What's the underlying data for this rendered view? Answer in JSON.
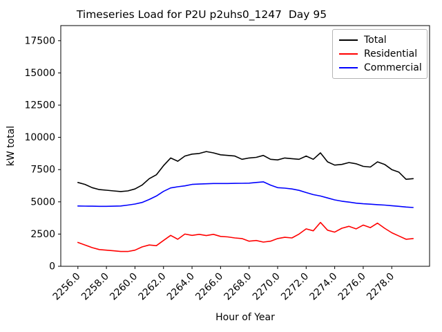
{
  "chart_data": {
    "type": "line",
    "title": "Timeseries Load for P2U p2uhs0_1247  Day 95",
    "xlabel": "Hour of Year",
    "ylabel": "kW total",
    "grid": false,
    "legend_position": "upper right",
    "axes": {
      "xlim": [
        2254.8,
        2280.65
      ],
      "ylim": [
        0,
        18670
      ],
      "xtick_values": [
        2256,
        2258,
        2260,
        2262,
        2264,
        2266,
        2268,
        2270,
        2272,
        2274,
        2276,
        2278
      ],
      "xtick_labels": [
        "2256.0",
        "2258.0",
        "2260.0",
        "2262.0",
        "2264.0",
        "2266.0",
        "2268.0",
        "2270.0",
        "2272.0",
        "2274.0",
        "2276.0",
        "2278.0"
      ],
      "ytick_values": [
        0,
        2500,
        5000,
        7500,
        10000,
        12500,
        15000,
        17500
      ],
      "ytick_labels": [
        "0",
        "2500",
        "5000",
        "7500",
        "10000",
        "12500",
        "15000",
        "17500"
      ]
    },
    "x": [
      2256.0,
      2256.5,
      2257.0,
      2257.5,
      2258.0,
      2258.5,
      2259.0,
      2259.5,
      2260.0,
      2260.5,
      2261.0,
      2261.5,
      2262.0,
      2262.5,
      2263.0,
      2263.5,
      2264.0,
      2264.5,
      2265.0,
      2265.5,
      2266.0,
      2266.5,
      2267.0,
      2267.5,
      2268.0,
      2268.5,
      2269.0,
      2269.5,
      2270.0,
      2270.5,
      2271.0,
      2271.5,
      2272.0,
      2272.5,
      2273.0,
      2273.5,
      2274.0,
      2274.5,
      2275.0,
      2275.5,
      2276.0,
      2276.5,
      2277.0,
      2277.5,
      2278.0,
      2278.5,
      2279.0,
      2279.5
    ],
    "series": [
      {
        "name": "Total",
        "color": "#000000",
        "values": [
          6500,
          6350,
          6100,
          5950,
          5900,
          5850,
          5800,
          5850,
          6000,
          6300,
          6800,
          7100,
          7800,
          8400,
          8150,
          8550,
          8700,
          8750,
          8900,
          8800,
          8650,
          8600,
          8550,
          8300,
          8400,
          8450,
          8600,
          8300,
          8250,
          8400,
          8350,
          8300,
          8550,
          8300,
          8800,
          8100,
          7850,
          7900,
          8050,
          7950,
          7750,
          7700,
          8100,
          7900,
          7500,
          7300,
          6750,
          6800
        ]
      },
      {
        "name": "Residential",
        "color": "#ff0000",
        "values": [
          1850,
          1650,
          1450,
          1300,
          1250,
          1200,
          1150,
          1150,
          1250,
          1500,
          1650,
          1600,
          2000,
          2400,
          2100,
          2500,
          2400,
          2480,
          2380,
          2480,
          2320,
          2280,
          2200,
          2150,
          1950,
          2000,
          1880,
          1950,
          2150,
          2250,
          2200,
          2500,
          2900,
          2750,
          3400,
          2800,
          2650,
          2950,
          3100,
          2900,
          3200,
          3000,
          3350,
          2950,
          2600,
          2350,
          2100,
          2150
        ]
      },
      {
        "name": "Commercial",
        "color": "#0000ff",
        "values": [
          4680,
          4670,
          4660,
          4650,
          4650,
          4660,
          4680,
          4750,
          4830,
          4950,
          5180,
          5450,
          5810,
          6080,
          6170,
          6240,
          6350,
          6380,
          6400,
          6420,
          6420,
          6420,
          6430,
          6440,
          6450,
          6500,
          6550,
          6300,
          6100,
          6060,
          6000,
          5890,
          5720,
          5560,
          5450,
          5300,
          5150,
          5050,
          4980,
          4900,
          4850,
          4820,
          4780,
          4750,
          4700,
          4650,
          4600,
          4560
        ]
      }
    ]
  }
}
